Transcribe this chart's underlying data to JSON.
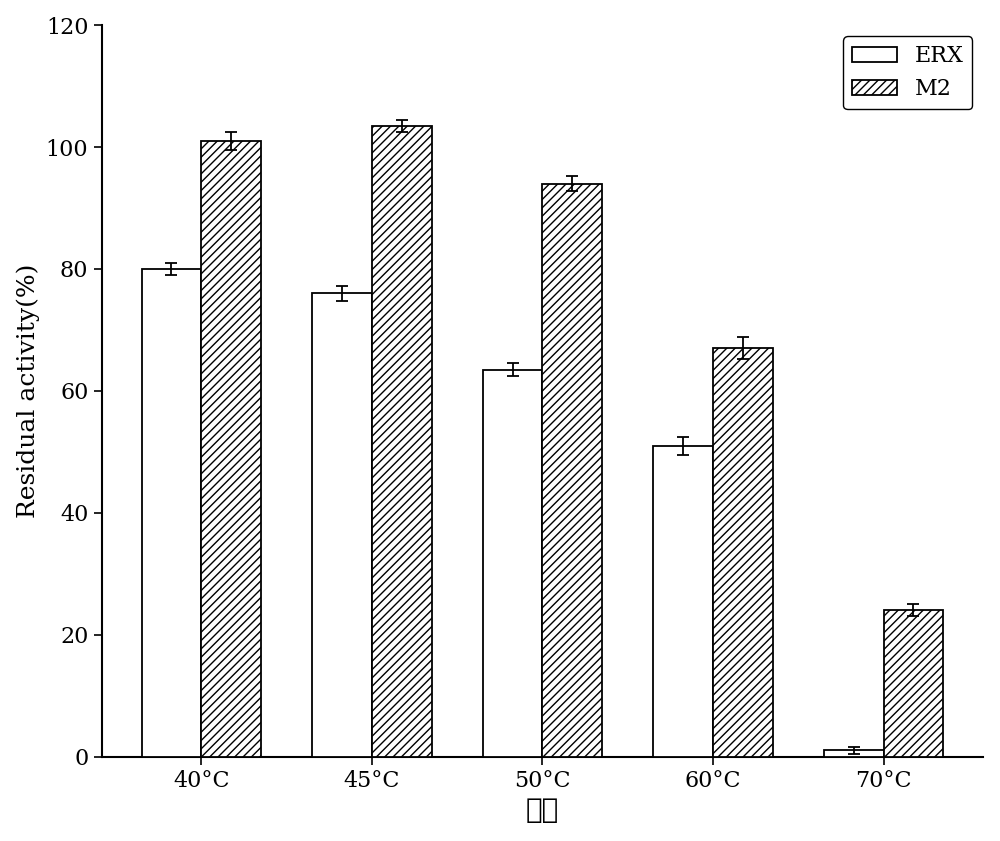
{
  "categories": [
    "40°C",
    "45°C",
    "50°C",
    "60°C",
    "70°C"
  ],
  "erx_values": [
    80.0,
    76.0,
    63.5,
    51.0,
    1.0
  ],
  "m2_values": [
    101.0,
    103.5,
    94.0,
    67.0,
    24.0
  ],
  "erx_errors": [
    1.0,
    1.2,
    1.0,
    1.5,
    0.5
  ],
  "m2_errors": [
    1.5,
    1.0,
    1.2,
    1.8,
    1.0
  ],
  "ylabel": "Residual activity(%)",
  "xlabel": "温度",
  "ylim": [
    0,
    120
  ],
  "yticks": [
    0,
    20,
    40,
    60,
    80,
    100,
    120
  ],
  "legend_labels": [
    "ERX",
    "M2"
  ],
  "bar_width": 0.35,
  "erx_color": "white",
  "m2_color": "white",
  "m2_hatch": "////",
  "edge_color": "black",
  "axis_fontsize": 18,
  "tick_fontsize": 16,
  "legend_fontsize": 16,
  "figure_width": 10.0,
  "figure_height": 8.41,
  "background_color": "white"
}
